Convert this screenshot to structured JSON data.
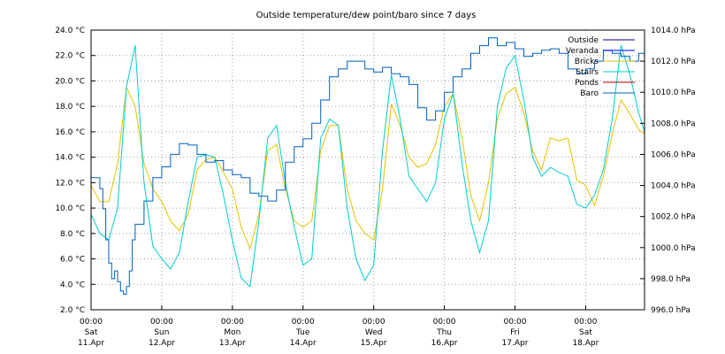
{
  "chart_data": {
    "type": "line",
    "title": "Outside temperature/dew point/baro since 7 days",
    "xlabel": "",
    "ylabel": "",
    "grid": true,
    "legend_position": "top-right",
    "x_unit": "hours since Sat 11.Apr 00:00",
    "xlim": [
      0,
      188
    ],
    "ylim": [
      2.0,
      24.0
    ],
    "y2lim": [
      996.0,
      1014.0
    ],
    "y_ticks": [
      "2.0 °C",
      "4.0 °C",
      "6.0 °C",
      "8.0 °C",
      "10.0 °C",
      "12.0 °C",
      "14.0 °C",
      "16.0 °C",
      "18.0 °C",
      "20.0 °C",
      "22.0 °C",
      "24.0 °C"
    ],
    "y2_ticks": [
      "996.0 hPa",
      "998.0 hPa",
      "1000.0 hPa",
      "1002.0 hPa",
      "1004.0 hPa",
      "1006.0 hPa",
      "1008.0 hPa",
      "1010.0 hPa",
      "1012.0 hPa",
      "1014.0 hPa"
    ],
    "x_ticks": [
      {
        "time": "00:00",
        "day": "Sat",
        "date": "11.Apr"
      },
      {
        "time": "00:00",
        "day": "Sun",
        "date": "12.Apr"
      },
      {
        "time": "00:00",
        "day": "Mon",
        "date": "13.Apr"
      },
      {
        "time": "00:00",
        "day": "Tue",
        "date": "14.Apr"
      },
      {
        "time": "00:00",
        "day": "Wed",
        "date": "15.Apr"
      },
      {
        "time": "00:00",
        "day": "Thu",
        "date": "16.Apr"
      },
      {
        "time": "00:00",
        "day": "Fri",
        "date": "17.Apr"
      },
      {
        "time": "00:00",
        "day": "Sat",
        "date": "18.Apr"
      }
    ],
    "series": [
      {
        "name": "Outside",
        "color": "#00007f",
        "axis": "y1",
        "x": [],
        "values": []
      },
      {
        "name": "Veranda",
        "color": "#0000ff",
        "axis": "y1",
        "x": [],
        "values": []
      },
      {
        "name": "Bricks",
        "color": "#e6c200",
        "axis": "y1",
        "x": [
          0,
          3,
          6,
          9,
          12,
          15,
          18,
          21,
          24,
          27,
          30,
          33,
          36,
          39,
          42,
          45,
          48,
          51,
          54,
          57,
          60,
          63,
          66,
          69,
          72,
          75,
          78,
          81,
          84,
          87,
          90,
          93,
          96,
          99,
          102,
          105,
          108,
          111,
          114,
          117,
          120,
          123,
          126,
          129,
          132,
          135,
          138,
          141,
          144,
          147,
          150,
          153,
          156,
          159,
          162,
          165,
          168,
          171,
          174,
          177,
          180,
          183,
          186,
          188
        ],
        "values": [
          11.8,
          10.5,
          10.5,
          13.5,
          19.5,
          18,
          13.5,
          11.5,
          10.5,
          9,
          8.2,
          9.5,
          13,
          13.8,
          14,
          12.8,
          11.5,
          8.5,
          6.8,
          9.5,
          14.5,
          15,
          11.5,
          9,
          8.5,
          9,
          14.5,
          16.5,
          16.5,
          11.5,
          9,
          8,
          7.5,
          11.5,
          18.2,
          16.5,
          14,
          13.2,
          13.5,
          15,
          18,
          19,
          15.5,
          11,
          9,
          12,
          17,
          19,
          19.5,
          17.5,
          14.5,
          13,
          15.5,
          15.3,
          15.5,
          12.2,
          11.8,
          10.2,
          12.5,
          15.8,
          18.5,
          17.4,
          16.2,
          15.8
        ]
      },
      {
        "name": "Stairs",
        "color": "#00cdcd",
        "axis": "y1",
        "x": [
          0,
          3,
          6,
          9,
          12,
          15,
          18,
          21,
          24,
          27,
          30,
          33,
          36,
          39,
          42,
          45,
          48,
          51,
          54,
          57,
          60,
          63,
          66,
          69,
          72,
          75,
          78,
          81,
          84,
          87,
          90,
          93,
          96,
          99,
          102,
          105,
          108,
          111,
          114,
          117,
          120,
          123,
          126,
          129,
          132,
          135,
          138,
          141,
          144,
          147,
          150,
          153,
          156,
          159,
          162,
          165,
          168,
          171,
          174,
          177,
          180,
          183,
          186,
          188
        ],
        "values": [
          9.5,
          8,
          7.5,
          10,
          19.5,
          22.8,
          12,
          7,
          6,
          5.2,
          6.5,
          10.5,
          14,
          14.2,
          14,
          11,
          7.5,
          4.5,
          3.8,
          9,
          15.5,
          16.5,
          12,
          8.5,
          5.5,
          6,
          15.5,
          17,
          16.5,
          10,
          6,
          4.3,
          5.5,
          14.5,
          20.5,
          17,
          12.5,
          11.5,
          10.5,
          12,
          17,
          19,
          13.5,
          9,
          6.5,
          9,
          18,
          21,
          22,
          18.5,
          14,
          12.5,
          13.2,
          12.8,
          12.5,
          10.3,
          10,
          11,
          13,
          17,
          22.8,
          20.5,
          17.5,
          16
        ]
      },
      {
        "name": "Ponds",
        "color": "#c00000",
        "axis": "y1",
        "x": [],
        "values": []
      },
      {
        "name": "Baro",
        "color": "#0060c0",
        "axis": "y2",
        "x": [
          0,
          3,
          4,
          5,
          6,
          7,
          8,
          9,
          10,
          11,
          12,
          13,
          14,
          15,
          18,
          21,
          24,
          27,
          30,
          33,
          36,
          39,
          42,
          45,
          48,
          51,
          54,
          57,
          60,
          63,
          66,
          69,
          72,
          75,
          78,
          81,
          84,
          87,
          90,
          93,
          96,
          99,
          102,
          105,
          108,
          111,
          114,
          117,
          120,
          123,
          126,
          129,
          132,
          135,
          138,
          141,
          144,
          147,
          150,
          153,
          156,
          159,
          162,
          165,
          168,
          171,
          174,
          177,
          180,
          183,
          186,
          188
        ],
        "values": [
          1004.5,
          1003.8,
          1002.5,
          1000.5,
          999,
          998,
          998.5,
          997.8,
          997.2,
          997,
          997.5,
          998.5,
          1000.5,
          1001.5,
          1003,
          1004.5,
          1005.2,
          1006,
          1006.7,
          1006.6,
          1006,
          1005.5,
          1005.6,
          1005,
          1004.7,
          1004.5,
          1003.5,
          1003.3,
          1003,
          1003.7,
          1005.5,
          1006.5,
          1007,
          1008,
          1009.5,
          1011,
          1011.5,
          1012,
          1012,
          1011.5,
          1011.3,
          1011.6,
          1011.2,
          1011,
          1010.5,
          1009,
          1008.2,
          1008.8,
          1010,
          1011,
          1011.5,
          1012.5,
          1013,
          1013.5,
          1013,
          1013.2,
          1012.8,
          1012.3,
          1012.5,
          1012.7,
          1012.8,
          1012.5,
          1011.5,
          1011.2,
          1011.5,
          1012,
          1012.7,
          1012.5,
          1012.3,
          1012,
          1012.5,
          1012.2
        ]
      }
    ]
  }
}
